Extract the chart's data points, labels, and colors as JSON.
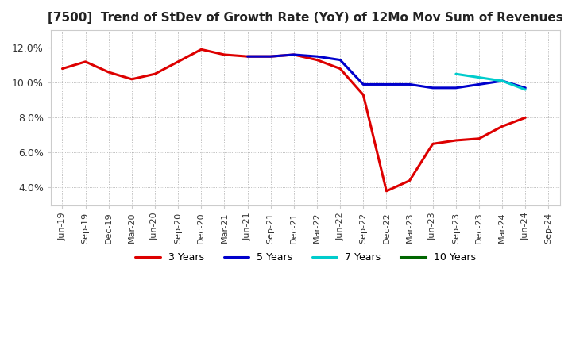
{
  "title": "[7500]  Trend of StDev of Growth Rate (YoY) of 12Mo Mov Sum of Revenues",
  "title_fontsize": 11,
  "background_color": "#ffffff",
  "plot_background_color": "#ffffff",
  "grid_color": "#aaaaaa",
  "ylim": [
    0.03,
    0.13
  ],
  "yticks": [
    0.04,
    0.06,
    0.08,
    0.1,
    0.12
  ],
  "x_labels": [
    "Jun-19",
    "Sep-19",
    "Dec-19",
    "Mar-20",
    "Jun-20",
    "Sep-20",
    "Dec-20",
    "Mar-21",
    "Jun-21",
    "Sep-21",
    "Dec-21",
    "Mar-22",
    "Jun-22",
    "Sep-22",
    "Dec-22",
    "Mar-23",
    "Jun-23",
    "Sep-23",
    "Dec-23",
    "Mar-24",
    "Jun-24",
    "Sep-24"
  ],
  "series": {
    "3 Years": {
      "color": "#dd0000",
      "linewidth": 2.2,
      "data": [
        0.108,
        0.112,
        0.106,
        0.102,
        0.105,
        0.112,
        0.119,
        0.116,
        0.115,
        0.115,
        0.116,
        0.113,
        0.108,
        0.093,
        0.038,
        0.044,
        0.065,
        0.067,
        0.068,
        0.075,
        0.08,
        null
      ]
    },
    "5 Years": {
      "color": "#0000cc",
      "linewidth": 2.2,
      "data": [
        null,
        null,
        null,
        null,
        null,
        null,
        null,
        null,
        0.115,
        0.115,
        0.116,
        0.115,
        0.113,
        0.099,
        0.099,
        0.099,
        0.097,
        0.097,
        0.099,
        0.101,
        0.097,
        null
      ]
    },
    "7 Years": {
      "color": "#00cccc",
      "linewidth": 2.2,
      "data": [
        null,
        null,
        null,
        null,
        null,
        null,
        null,
        null,
        null,
        null,
        null,
        null,
        null,
        null,
        null,
        null,
        null,
        0.105,
        0.103,
        0.101,
        0.096,
        null
      ]
    },
    "10 Years": {
      "color": "#006600",
      "linewidth": 2.2,
      "data": [
        null,
        null,
        null,
        null,
        null,
        null,
        null,
        null,
        null,
        null,
        null,
        null,
        null,
        null,
        null,
        null,
        null,
        null,
        null,
        null,
        null,
        null
      ]
    }
  }
}
